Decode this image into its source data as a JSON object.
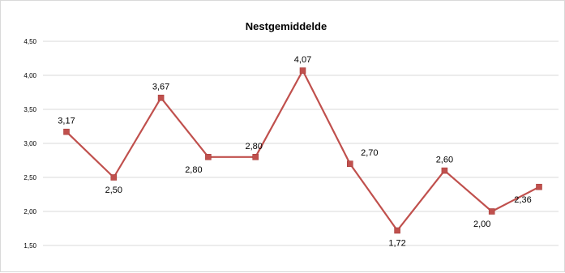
{
  "chart_data": {
    "type": "line",
    "title": "Nestgemiddelde",
    "xlabel": "",
    "ylabel": "",
    "ylim": [
      1.5,
      4.5
    ],
    "yticks": [
      1.5,
      2.0,
      2.5,
      3.0,
      3.5,
      4.0,
      4.5
    ],
    "ytick_labels": [
      "1,50",
      "2,00",
      "2,50",
      "3,00",
      "3,50",
      "4,00",
      "4,50"
    ],
    "grid": true,
    "legend": "none",
    "series": [
      {
        "color": "#c0504d",
        "marker": "square",
        "values": [
          3.17,
          2.5,
          3.67,
          2.8,
          2.8,
          4.07,
          2.7,
          1.72,
          2.6,
          2.0,
          2.36
        ],
        "labels": [
          "3,17",
          "2,50",
          "3,67",
          "2,80",
          "2,80",
          "4,07",
          "2,70",
          "1,72",
          "2,60",
          "2,00",
          "2,36"
        ],
        "label_positions": [
          "above",
          "below",
          "above",
          "below",
          "above",
          "above",
          "above-right",
          "below",
          "above",
          "below",
          "below"
        ]
      }
    ]
  }
}
